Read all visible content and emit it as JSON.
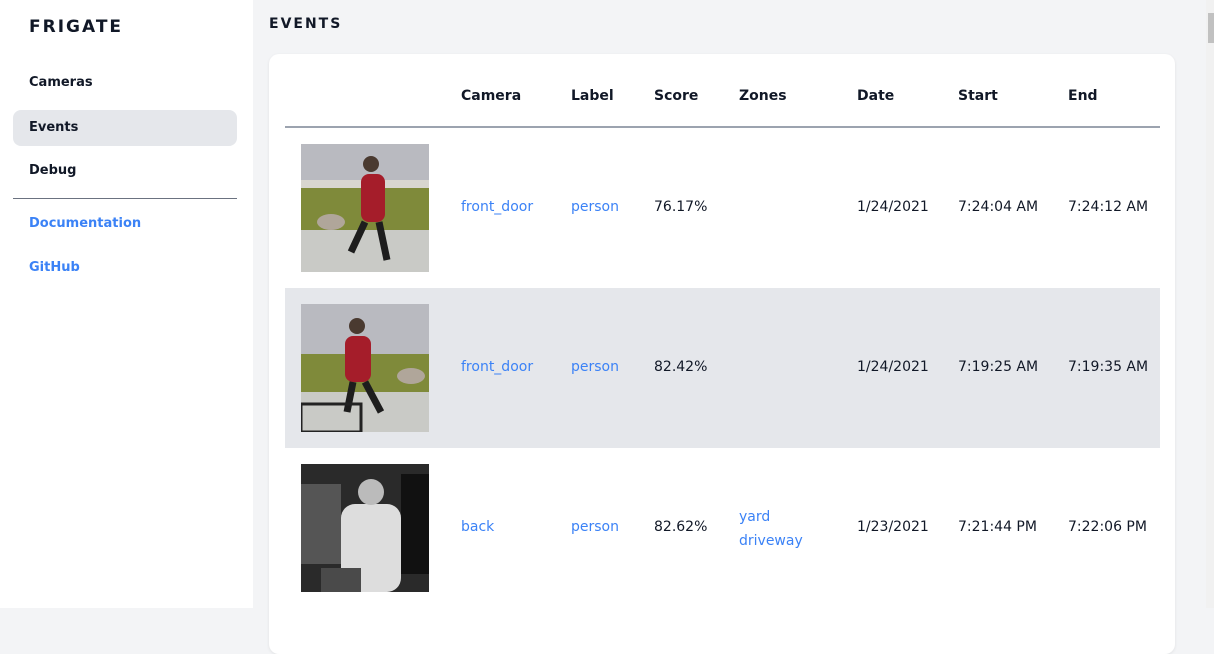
{
  "sidebar": {
    "brand": "FRIGATE",
    "items": [
      {
        "label": "Cameras",
        "active": false
      },
      {
        "label": "Events",
        "active": true
      },
      {
        "label": "Debug",
        "active": false
      }
    ],
    "links": [
      {
        "label": "Documentation"
      },
      {
        "label": "GitHub"
      }
    ]
  },
  "page": {
    "title": "EVENTS"
  },
  "table": {
    "headers": [
      "Camera",
      "Label",
      "Score",
      "Zones",
      "Date",
      "Start",
      "End"
    ],
    "rows": [
      {
        "camera": "front_door",
        "label": "person",
        "score": "76.17%",
        "zones": [
          "",
          ""
        ],
        "date": "1/24/2021",
        "start": "7:24:04 AM",
        "end": "7:24:12 AM"
      },
      {
        "camera": "front_door",
        "label": "person",
        "score": "82.42%",
        "zones": [
          "",
          ""
        ],
        "date": "1/24/2021",
        "start": "7:19:25 AM",
        "end": "7:19:35 AM"
      },
      {
        "camera": "back",
        "label": "person",
        "score": "82.62%",
        "zones": [
          "yard",
          "driveway"
        ],
        "date": "1/23/2021",
        "start": "7:21:44 PM",
        "end": "7:22:06 PM"
      }
    ]
  },
  "colors": {
    "accent": "#3b82f6",
    "active_bg": "#e5e7eb"
  }
}
